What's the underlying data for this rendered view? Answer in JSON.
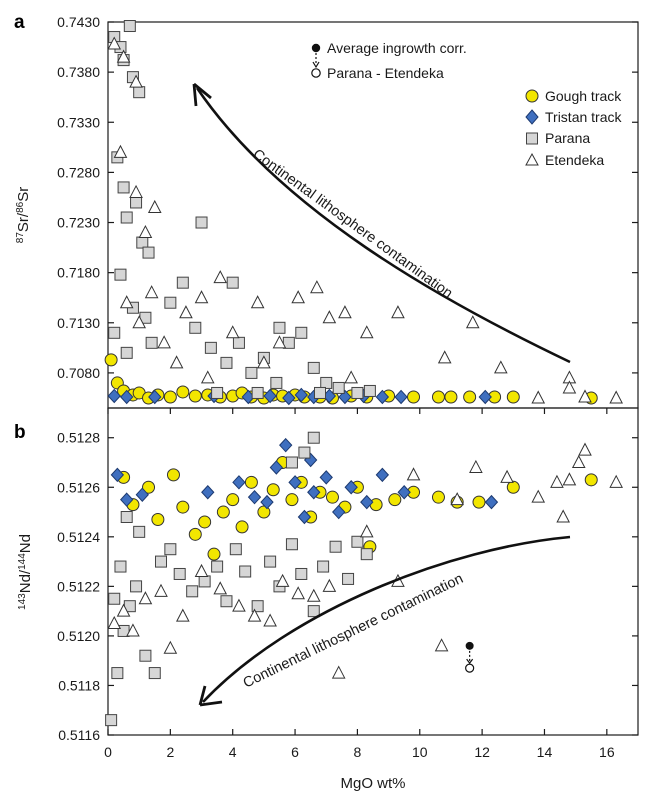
{
  "chart_data": [
    {
      "panel": "a",
      "type": "scatter",
      "ylabel": {
        "iso_a": "87",
        "el_a": "Sr/",
        "iso_b": "86",
        "el_b": "Sr"
      },
      "xlim": [
        0,
        17
      ],
      "ylim": [
        0.7045,
        0.743
      ],
      "yticks": [
        "0.7430",
        "0.7380",
        "0.7330",
        "0.7280",
        "0.7230",
        "0.7180",
        "0.7130",
        "0.7080"
      ],
      "ytick_values": [
        0.743,
        0.738,
        0.733,
        0.728,
        0.723,
        0.718,
        0.713,
        0.708
      ],
      "annotation": "Continental lithosphere contamination",
      "series": [
        {
          "name": "Gough track",
          "marker": "circle",
          "color": "#f2e600",
          "points": [
            [
              0.1,
              0.7093
            ],
            [
              0.3,
              0.707
            ],
            [
              0.5,
              0.7062
            ],
            [
              0.8,
              0.7058
            ],
            [
              1.0,
              0.706
            ],
            [
              1.3,
              0.7055
            ],
            [
              1.6,
              0.7058
            ],
            [
              2.0,
              0.7056
            ],
            [
              2.4,
              0.7061
            ],
            [
              2.8,
              0.7057
            ],
            [
              3.2,
              0.7058
            ],
            [
              3.6,
              0.7056
            ],
            [
              4.0,
              0.7057
            ],
            [
              4.3,
              0.706
            ],
            [
              4.6,
              0.7056
            ],
            [
              5.0,
              0.7055
            ],
            [
              5.3,
              0.7058
            ],
            [
              5.6,
              0.7057
            ],
            [
              6.0,
              0.7058
            ],
            [
              6.3,
              0.7056
            ],
            [
              6.8,
              0.7056
            ],
            [
              7.2,
              0.7055
            ],
            [
              7.8,
              0.7057
            ],
            [
              8.3,
              0.7056
            ],
            [
              9.0,
              0.7057
            ],
            [
              9.8,
              0.7056
            ],
            [
              10.6,
              0.7056
            ],
            [
              11.0,
              0.7056
            ],
            [
              11.6,
              0.7056
            ],
            [
              12.4,
              0.7056
            ],
            [
              13.0,
              0.7056
            ],
            [
              15.5,
              0.7055
            ]
          ]
        },
        {
          "name": "Tristan track",
          "marker": "diamond",
          "color": "#3f6fbf",
          "points": [
            [
              0.2,
              0.7057
            ],
            [
              0.6,
              0.7056
            ],
            [
              1.5,
              0.7056
            ],
            [
              3.4,
              0.7057
            ],
            [
              4.5,
              0.7056
            ],
            [
              5.2,
              0.7057
            ],
            [
              5.8,
              0.7055
            ],
            [
              6.2,
              0.7058
            ],
            [
              6.6,
              0.7056
            ],
            [
              7.1,
              0.7057
            ],
            [
              7.6,
              0.7056
            ],
            [
              8.2,
              0.7057
            ],
            [
              8.8,
              0.7056
            ],
            [
              9.4,
              0.7056
            ],
            [
              12.1,
              0.7056
            ]
          ]
        },
        {
          "name": "Parana",
          "marker": "square",
          "color": "#d6d6d6",
          "points": [
            [
              0.2,
              0.7415
            ],
            [
              0.4,
              0.7405
            ],
            [
              0.5,
              0.7392
            ],
            [
              0.7,
              0.7426
            ],
            [
              0.8,
              0.7375
            ],
            [
              1.0,
              0.736
            ],
            [
              0.3,
              0.7295
            ],
            [
              0.5,
              0.7265
            ],
            [
              0.6,
              0.7235
            ],
            [
              0.9,
              0.725
            ],
            [
              1.1,
              0.721
            ],
            [
              1.3,
              0.72
            ],
            [
              0.4,
              0.7178
            ],
            [
              0.8,
              0.7145
            ],
            [
              1.2,
              0.7135
            ],
            [
              0.2,
              0.712
            ],
            [
              0.6,
              0.71
            ],
            [
              1.4,
              0.711
            ],
            [
              2.0,
              0.715
            ],
            [
              2.4,
              0.717
            ],
            [
              2.8,
              0.7125
            ],
            [
              3.3,
              0.7105
            ],
            [
              3.8,
              0.709
            ],
            [
              4.2,
              0.711
            ],
            [
              4.6,
              0.708
            ],
            [
              5.0,
              0.7095
            ],
            [
              5.4,
              0.707
            ],
            [
              5.8,
              0.711
            ],
            [
              6.2,
              0.712
            ],
            [
              6.6,
              0.7085
            ],
            [
              7.0,
              0.707
            ],
            [
              7.4,
              0.7065
            ],
            [
              8.0,
              0.706
            ],
            [
              8.4,
              0.7062
            ],
            [
              4.0,
              0.717
            ],
            [
              3.0,
              0.723
            ],
            [
              3.5,
              0.706
            ],
            [
              6.8,
              0.706
            ],
            [
              5.5,
              0.7125
            ],
            [
              4.8,
              0.706
            ]
          ]
        },
        {
          "name": "Etendeka",
          "marker": "triangle",
          "color": "#ffffff",
          "points": [
            [
              0.2,
              0.7408
            ],
            [
              0.5,
              0.7395
            ],
            [
              0.9,
              0.737
            ],
            [
              0.4,
              0.73
            ],
            [
              0.9,
              0.726
            ],
            [
              1.2,
              0.722
            ],
            [
              1.5,
              0.7245
            ],
            [
              0.6,
              0.715
            ],
            [
              1.0,
              0.713
            ],
            [
              1.4,
              0.716
            ],
            [
              1.8,
              0.711
            ],
            [
              2.5,
              0.714
            ],
            [
              3.0,
              0.7155
            ],
            [
              3.6,
              0.7175
            ],
            [
              4.0,
              0.712
            ],
            [
              4.8,
              0.715
            ],
            [
              5.5,
              0.711
            ],
            [
              6.1,
              0.7155
            ],
            [
              6.7,
              0.7165
            ],
            [
              7.1,
              0.7135
            ],
            [
              7.6,
              0.714
            ],
            [
              8.3,
              0.712
            ],
            [
              9.3,
              0.714
            ],
            [
              11.7,
              0.713
            ],
            [
              12.6,
              0.7085
            ],
            [
              14.8,
              0.7075
            ],
            [
              14.8,
              0.7065
            ],
            [
              15.3,
              0.7056
            ],
            [
              16.3,
              0.7055
            ],
            [
              10.8,
              0.7095
            ],
            [
              13.8,
              0.7055
            ],
            [
              2.2,
              0.709
            ],
            [
              3.2,
              0.7075
            ],
            [
              5.0,
              0.709
            ],
            [
              7.8,
              0.7075
            ]
          ]
        }
      ],
      "legend": [
        "Gough track",
        "Tristan track",
        "Parana",
        "Etendeka"
      ],
      "legend_extra": {
        "filled": "Average ingrowth corr.",
        "open": "Parana - Etendeka"
      }
    },
    {
      "panel": "b",
      "type": "scatter",
      "ylabel": {
        "iso_a": "143",
        "el_a": "Nd/",
        "iso_b": "144",
        "el_b": "Nd"
      },
      "xlabel": "MgO wt%",
      "xlim": [
        0,
        17
      ],
      "ylim": [
        0.5116,
        0.51292
      ],
      "xticks": [
        "0",
        "2",
        "4",
        "6",
        "8",
        "10",
        "12",
        "14",
        "16"
      ],
      "xtick_values": [
        0,
        2,
        4,
        6,
        8,
        10,
        12,
        14,
        16
      ],
      "yticks": [
        "0.5128",
        "0.5126",
        "0.5124",
        "0.5122",
        "0.5120",
        "0.5118",
        "0.5116"
      ],
      "ytick_values": [
        0.5128,
        0.5126,
        0.5124,
        0.5122,
        0.512,
        0.5118,
        0.5116
      ],
      "annotation": "Continental lithosphere contamination",
      "ingrowth_point": {
        "x": 11.6,
        "y_filled": 0.51196,
        "y_open": 0.51187
      },
      "series": [
        {
          "name": "Gough track",
          "marker": "circle",
          "color": "#f2e600",
          "points": [
            [
              0.5,
              0.51264
            ],
            [
              0.8,
              0.51253
            ],
            [
              1.3,
              0.5126
            ],
            [
              1.6,
              0.51247
            ],
            [
              2.1,
              0.51265
            ],
            [
              2.4,
              0.51252
            ],
            [
              2.8,
              0.51241
            ],
            [
              3.1,
              0.51246
            ],
            [
              3.4,
              0.51233
            ],
            [
              3.7,
              0.5125
            ],
            [
              4.0,
              0.51255
            ],
            [
              4.3,
              0.51244
            ],
            [
              4.6,
              0.51262
            ],
            [
              5.0,
              0.5125
            ],
            [
              5.3,
              0.51259
            ],
            [
              5.6,
              0.5127
            ],
            [
              5.9,
              0.51255
            ],
            [
              6.2,
              0.51262
            ],
            [
              6.5,
              0.51248
            ],
            [
              6.8,
              0.51258
            ],
            [
              7.2,
              0.51256
            ],
            [
              7.6,
              0.51252
            ],
            [
              8.0,
              0.5126
            ],
            [
              8.4,
              0.51236
            ],
            [
              8.6,
              0.51253
            ],
            [
              9.2,
              0.51255
            ],
            [
              9.8,
              0.51258
            ],
            [
              10.6,
              0.51256
            ],
            [
              11.2,
              0.51254
            ],
            [
              11.9,
              0.51254
            ],
            [
              13.0,
              0.5126
            ],
            [
              15.5,
              0.51263
            ]
          ]
        },
        {
          "name": "Tristan track",
          "marker": "diamond",
          "color": "#3f6fbf",
          "points": [
            [
              0.3,
              0.51265
            ],
            [
              0.6,
              0.51255
            ],
            [
              1.1,
              0.51257
            ],
            [
              3.2,
              0.51258
            ],
            [
              4.2,
              0.51262
            ],
            [
              4.7,
              0.51256
            ],
            [
              5.1,
              0.51254
            ],
            [
              5.4,
              0.51268
            ],
            [
              5.7,
              0.51277
            ],
            [
              6.0,
              0.51262
            ],
            [
              6.3,
              0.51248
            ],
            [
              6.6,
              0.51258
            ],
            [
              7.0,
              0.51264
            ],
            [
              7.4,
              0.5125
            ],
            [
              7.8,
              0.5126
            ],
            [
              8.3,
              0.51254
            ],
            [
              8.8,
              0.51265
            ],
            [
              9.5,
              0.51258
            ],
            [
              12.3,
              0.51254
            ],
            [
              6.5,
              0.51271
            ]
          ]
        },
        {
          "name": "Parana",
          "marker": "square",
          "color": "#d6d6d6",
          "points": [
            [
              0.1,
              0.51166
            ],
            [
              0.3,
              0.51185
            ],
            [
              0.5,
              0.51202
            ],
            [
              0.2,
              0.51215
            ],
            [
              0.4,
              0.51228
            ],
            [
              0.7,
              0.51212
            ],
            [
              0.9,
              0.5122
            ],
            [
              1.2,
              0.51192
            ],
            [
              1.5,
              0.51185
            ],
            [
              1.7,
              0.5123
            ],
            [
              2.0,
              0.51235
            ],
            [
              2.3,
              0.51225
            ],
            [
              2.7,
              0.51218
            ],
            [
              3.1,
              0.51222
            ],
            [
              3.5,
              0.51228
            ],
            [
              3.8,
              0.51214
            ],
            [
              4.1,
              0.51235
            ],
            [
              4.4,
              0.51226
            ],
            [
              4.8,
              0.51212
            ],
            [
              5.2,
              0.5123
            ],
            [
              5.5,
              0.5122
            ],
            [
              5.9,
              0.51237
            ],
            [
              6.2,
              0.51225
            ],
            [
              6.6,
              0.5121
            ],
            [
              6.9,
              0.51228
            ],
            [
              7.3,
              0.51236
            ],
            [
              7.7,
              0.51223
            ],
            [
              8.0,
              0.51238
            ],
            [
              8.3,
              0.51233
            ],
            [
              6.6,
              0.5128
            ],
            [
              6.3,
              0.51274
            ],
            [
              5.9,
              0.5127
            ],
            [
              1.0,
              0.51242
            ],
            [
              0.6,
              0.51248
            ]
          ]
        },
        {
          "name": "Etendeka",
          "marker": "triangle",
          "color": "#ffffff",
          "points": [
            [
              0.2,
              0.51205
            ],
            [
              0.5,
              0.5121
            ],
            [
              0.8,
              0.51202
            ],
            [
              1.2,
              0.51215
            ],
            [
              1.7,
              0.51218
            ],
            [
              2.4,
              0.51208
            ],
            [
              3.0,
              0.51226
            ],
            [
              3.6,
              0.51219
            ],
            [
              4.2,
              0.51212
            ],
            [
              4.7,
              0.51208
            ],
            [
              5.2,
              0.51206
            ],
            [
              5.6,
              0.51222
            ],
            [
              6.1,
              0.51217
            ],
            [
              6.6,
              0.51216
            ],
            [
              7.1,
              0.5122
            ],
            [
              7.4,
              0.51185
            ],
            [
              8.3,
              0.51242
            ],
            [
              9.3,
              0.51222
            ],
            [
              10.7,
              0.51196
            ],
            [
              11.2,
              0.51255
            ],
            [
              11.8,
              0.51268
            ],
            [
              12.8,
              0.51264
            ],
            [
              13.8,
              0.51256
            ],
            [
              14.4,
              0.51262
            ],
            [
              14.6,
              0.51248
            ],
            [
              14.8,
              0.51263
            ],
            [
              15.1,
              0.5127
            ],
            [
              15.3,
              0.51275
            ],
            [
              16.3,
              0.51262
            ],
            [
              9.8,
              0.51265
            ],
            [
              2.0,
              0.51195
            ]
          ]
        }
      ]
    }
  ]
}
